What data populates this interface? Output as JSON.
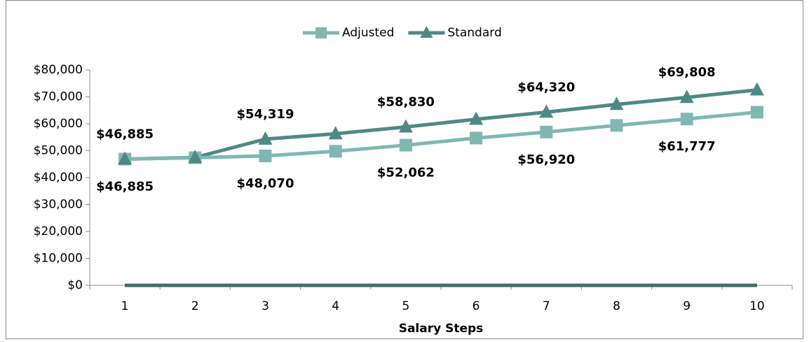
{
  "chart_data": {
    "type": "line",
    "categories": [
      1,
      2,
      3,
      4,
      5,
      6,
      7,
      8,
      9,
      10
    ],
    "x_label": "Salary Steps",
    "series": [
      {
        "name": "Adjusted",
        "color": "#7fb8b2",
        "marker": "square",
        "values": [
          46885,
          47400,
          48070,
          49800,
          52062,
          54700,
          56920,
          59400,
          61777,
          64300
        ],
        "value_labels": [
          "$46,885",
          null,
          "$48,070",
          null,
          "$52,062",
          null,
          "$56,920",
          null,
          "$61,777",
          null
        ],
        "label_position": "below"
      },
      {
        "name": "Standard",
        "color": "#4e8a84",
        "marker": "triangle",
        "values": [
          46885,
          47500,
          54319,
          56300,
          58830,
          61700,
          64320,
          67200,
          69808,
          72600
        ],
        "value_labels": [
          "$46,885",
          null,
          "$54,319",
          null,
          "$58,830",
          null,
          "$64,320",
          null,
          "$69,808",
          null
        ],
        "label_position": "above"
      },
      {
        "color": "#3f6f6c",
        "marker": "none",
        "values": [
          0,
          0,
          0,
          0,
          0,
          0,
          0,
          0,
          0,
          0
        ]
      }
    ],
    "ylim": [
      0,
      80000
    ],
    "yticks": [
      {
        "value": 0,
        "label": "$0"
      },
      {
        "value": 10000,
        "label": "$10,000"
      },
      {
        "value": 20000,
        "label": "$20,000"
      },
      {
        "value": 30000,
        "label": "$30,000"
      },
      {
        "value": 40000,
        "label": "$40,000"
      },
      {
        "value": 50000,
        "label": "$50,000"
      },
      {
        "value": 60000,
        "label": "$60,000"
      },
      {
        "value": 70000,
        "label": "$70,000"
      },
      {
        "value": 80000,
        "label": "$80,000"
      }
    ],
    "grid": false,
    "legend": "top"
  }
}
